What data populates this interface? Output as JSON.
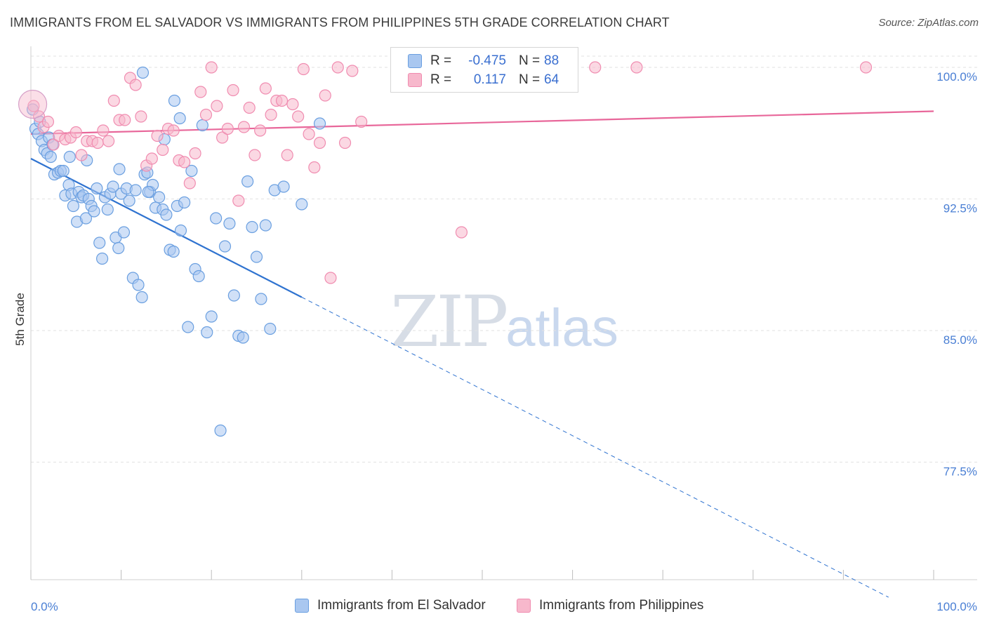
{
  "header": {
    "title": "IMMIGRANTS FROM EL SALVADOR VS IMMIGRANTS FROM PHILIPPINES 5TH GRADE CORRELATION CHART",
    "source": "Source: ZipAtlas.com"
  },
  "watermark": {
    "zip": "ZIP",
    "atlas": "atlas"
  },
  "legend": {
    "rows": [
      {
        "r_label": "R =",
        "r_value": "-0.475",
        "n_label": "N =",
        "n_value": "88",
        "color": "#a9c7f0"
      },
      {
        "r_label": "R =",
        "r_value": "0.117",
        "n_label": "N =",
        "n_value": "64",
        "color": "#f7b8cc"
      }
    ]
  },
  "bottom_legend": {
    "series1": "Immigrants from El Salvador",
    "series2": "Immigrants from Philippines"
  },
  "chart_data": {
    "type": "scatter",
    "title": "IMMIGRANTS FROM EL SALVADOR VS IMMIGRANTS FROM PHILIPPINES 5TH GRADE CORRELATION CHART",
    "ylabel": "5th Grade",
    "xlabel": "",
    "xlim": [
      0,
      100
    ],
    "ylim": [
      70.8,
      101.2
    ],
    "x_tick_labels": [
      "0.0%",
      "100.0%"
    ],
    "y_ticks": [
      77.5,
      85.0,
      92.5,
      100.0
    ],
    "y_tick_labels": [
      "77.5%",
      "85.0%",
      "92.5%",
      "100.0%"
    ],
    "grid": true,
    "legend_placement": "top-center",
    "series": [
      {
        "name": "Immigrants from El Salvador",
        "color": "#6a9fe0",
        "fill": "#a9c7f0",
        "trend": {
          "x0": 0,
          "y0": 94.8,
          "x1": 30,
          "y1": 86.9,
          "dashed_to_x": 95,
          "dashed_to_y": 69.8,
          "color": "#2f73d0"
        },
        "points": [
          [
            0.2,
            97.6
          ],
          [
            0.5,
            96.5
          ],
          [
            0.8,
            96.2
          ],
          [
            1.2,
            95.8
          ],
          [
            1.5,
            95.3
          ],
          [
            1.8,
            95.1
          ],
          [
            2.0,
            96.0
          ],
          [
            2.2,
            94.9
          ],
          [
            2.4,
            95.6
          ],
          [
            2.6,
            93.9
          ],
          [
            3.0,
            94.0
          ],
          [
            3.3,
            94.1
          ],
          [
            3.6,
            94.1
          ],
          [
            3.8,
            92.7
          ],
          [
            4.2,
            93.3
          ],
          [
            4.5,
            92.8
          ],
          [
            4.7,
            92.1
          ],
          [
            5.1,
            91.2
          ],
          [
            5.3,
            92.9
          ],
          [
            5.6,
            92.6
          ],
          [
            5.8,
            92.7
          ],
          [
            6.1,
            91.4
          ],
          [
            6.4,
            92.5
          ],
          [
            6.7,
            92.1
          ],
          [
            7.0,
            91.8
          ],
          [
            7.3,
            93.1
          ],
          [
            7.6,
            90.0
          ],
          [
            7.9,
            89.1
          ],
          [
            8.2,
            92.6
          ],
          [
            8.5,
            91.9
          ],
          [
            8.8,
            92.8
          ],
          [
            9.1,
            93.2
          ],
          [
            9.4,
            90.3
          ],
          [
            9.7,
            89.7
          ],
          [
            10.0,
            92.8
          ],
          [
            10.3,
            90.6
          ],
          [
            10.6,
            93.1
          ],
          [
            10.9,
            92.4
          ],
          [
            11.3,
            88.0
          ],
          [
            11.6,
            93.0
          ],
          [
            11.9,
            87.6
          ],
          [
            12.3,
            86.9
          ],
          [
            12.6,
            93.9
          ],
          [
            12.9,
            94.0
          ],
          [
            13.2,
            92.9
          ],
          [
            13.5,
            93.3
          ],
          [
            13.8,
            92.0
          ],
          [
            14.2,
            92.6
          ],
          [
            14.6,
            91.9
          ],
          [
            15.0,
            91.6
          ],
          [
            15.4,
            89.6
          ],
          [
            15.8,
            89.5
          ],
          [
            16.2,
            92.1
          ],
          [
            16.6,
            90.7
          ],
          [
            17.0,
            92.3
          ],
          [
            17.4,
            85.2
          ],
          [
            17.8,
            94.1
          ],
          [
            18.2,
            88.5
          ],
          [
            18.6,
            88.1
          ],
          [
            19.0,
            96.7
          ],
          [
            19.5,
            84.9
          ],
          [
            20.0,
            85.8
          ],
          [
            20.5,
            91.4
          ],
          [
            21.0,
            79.3
          ],
          [
            21.5,
            89.8
          ],
          [
            22.0,
            91.1
          ],
          [
            22.5,
            87.0
          ],
          [
            23.0,
            84.7
          ],
          [
            23.5,
            84.6
          ],
          [
            24.0,
            93.5
          ],
          [
            24.5,
            90.9
          ],
          [
            25.0,
            89.2
          ],
          [
            25.5,
            86.8
          ],
          [
            26.0,
            91.0
          ],
          [
            26.5,
            85.1
          ],
          [
            27.0,
            93.0
          ],
          [
            28.0,
            93.2
          ],
          [
            30.0,
            92.2
          ],
          [
            32.0,
            96.8
          ],
          [
            12.4,
            99.7
          ],
          [
            15.9,
            98.1
          ],
          [
            16.5,
            97.1
          ],
          [
            1.0,
            96.9
          ],
          [
            4.3,
            94.9
          ],
          [
            6.2,
            94.7
          ],
          [
            9.8,
            94.2
          ],
          [
            13.0,
            92.9
          ],
          [
            14.8,
            95.9
          ]
        ]
      },
      {
        "name": "Immigrants from Philippines",
        "color": "#f08cb0",
        "fill": "#f7b8cc",
        "trend": {
          "x0": 0,
          "y0": 96.2,
          "x1": 100,
          "y1": 97.5,
          "color": "#e8679a"
        },
        "points": [
          [
            0.3,
            97.8
          ],
          [
            0.9,
            97.2
          ],
          [
            1.4,
            96.6
          ],
          [
            1.9,
            96.9
          ],
          [
            2.5,
            95.6
          ],
          [
            3.1,
            96.1
          ],
          [
            3.8,
            95.9
          ],
          [
            4.4,
            96.0
          ],
          [
            5.0,
            96.3
          ],
          [
            5.6,
            95.0
          ],
          [
            6.2,
            95.8
          ],
          [
            6.8,
            95.8
          ],
          [
            7.4,
            95.7
          ],
          [
            8.0,
            96.4
          ],
          [
            8.6,
            95.8
          ],
          [
            9.2,
            98.1
          ],
          [
            9.8,
            97.0
          ],
          [
            10.4,
            97.0
          ],
          [
            11.0,
            99.4
          ],
          [
            11.6,
            99.0
          ],
          [
            12.2,
            97.2
          ],
          [
            12.8,
            94.4
          ],
          [
            13.4,
            94.8
          ],
          [
            14.0,
            96.1
          ],
          [
            14.6,
            95.3
          ],
          [
            15.2,
            96.5
          ],
          [
            15.8,
            96.4
          ],
          [
            16.4,
            94.7
          ],
          [
            17.0,
            94.6
          ],
          [
            17.6,
            93.4
          ],
          [
            18.2,
            95.1
          ],
          [
            18.8,
            98.6
          ],
          [
            19.4,
            97.3
          ],
          [
            20.0,
            100.0
          ],
          [
            20.6,
            97.8
          ],
          [
            21.2,
            96.0
          ],
          [
            21.8,
            96.5
          ],
          [
            22.4,
            98.7
          ],
          [
            23.0,
            92.4
          ],
          [
            23.6,
            96.6
          ],
          [
            24.2,
            97.7
          ],
          [
            24.8,
            95.0
          ],
          [
            25.4,
            96.4
          ],
          [
            26.0,
            98.8
          ],
          [
            26.6,
            97.3
          ],
          [
            27.2,
            98.1
          ],
          [
            27.8,
            98.1
          ],
          [
            28.4,
            95.0
          ],
          [
            29.0,
            97.9
          ],
          [
            29.6,
            97.2
          ],
          [
            30.2,
            99.9
          ],
          [
            30.8,
            96.2
          ],
          [
            31.4,
            94.3
          ],
          [
            32.0,
            95.7
          ],
          [
            32.6,
            98.4
          ],
          [
            33.2,
            88.0
          ],
          [
            34.0,
            100.0
          ],
          [
            34.8,
            95.7
          ],
          [
            35.6,
            99.8
          ],
          [
            36.6,
            96.9
          ],
          [
            47.7,
            90.6
          ],
          [
            62.5,
            100.0
          ],
          [
            67.1,
            100.0
          ],
          [
            92.5,
            100.0
          ]
        ]
      }
    ]
  }
}
